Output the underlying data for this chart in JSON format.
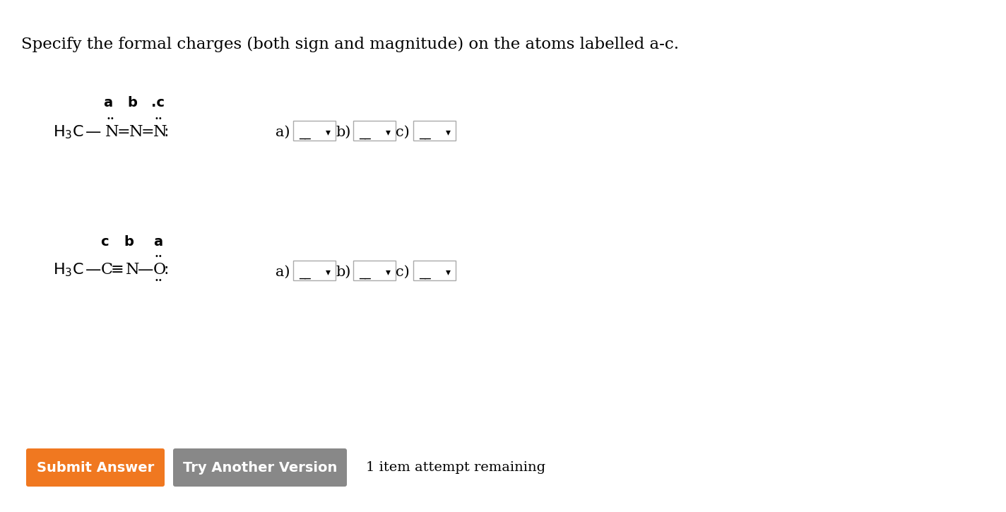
{
  "title": "Specify the formal charges (both sign and magnitude) on the atoms labelled a-c.",
  "title_fontsize": 16.5,
  "bg_color": "#ffffff",
  "text_color": "#000000",
  "submit_btn_color": "#f07820",
  "submit_btn_text": "Submit Answer",
  "submit_btn_text_color": "#ffffff",
  "try_btn_color": "#888888",
  "try_btn_text": "Try Another Version",
  "try_btn_text_color": "#ffffff",
  "remaining_text": "1 item attempt remaining"
}
